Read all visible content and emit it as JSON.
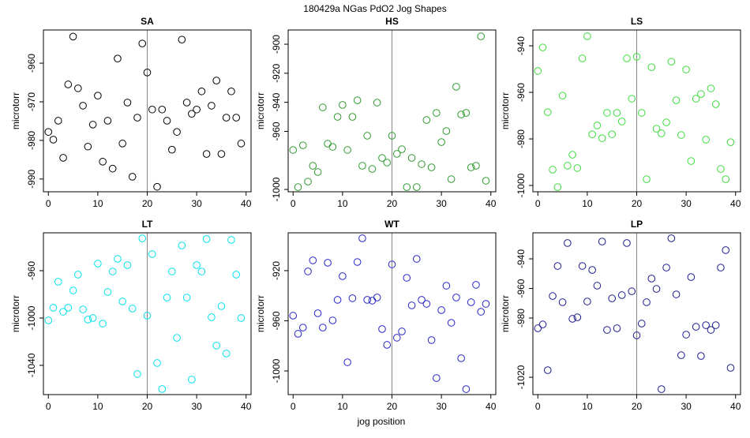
{
  "title": "180429a   NGas PdO2 Jog Shapes",
  "xlabel": "jog position",
  "chart_data": [
    {
      "type": "scatter",
      "title": "SA",
      "ylabel": "microtorr",
      "color": "#000000",
      "vline": 20,
      "x": [
        0,
        1,
        2,
        3,
        4,
        5,
        6,
        7,
        8,
        9,
        10,
        11,
        12,
        13,
        14,
        15,
        16,
        17,
        18,
        19,
        20,
        21,
        22,
        23,
        24,
        25,
        26,
        27,
        28,
        29,
        30,
        31,
        32,
        33,
        34,
        35,
        36,
        37,
        38,
        39
      ],
      "values": [
        -977.8,
        -979.8,
        -974.9,
        -984.5,
        -965.5,
        -953.1,
        -966.5,
        -971.0,
        -981.6,
        -975.9,
        -968.4,
        -985.5,
        -974.9,
        -987.3,
        -958.8,
        -980.8,
        -970.2,
        -989.4,
        -974.1,
        -954.9,
        -962.4,
        -972.0,
        -992.0,
        -972.0,
        -974.9,
        -982.4,
        -977.8,
        -953.9,
        -970.2,
        -973.1,
        -972.0,
        -967.3,
        -983.5,
        -971.0,
        -964.5,
        -983.5,
        -974.1,
        -967.3,
        -974.1,
        -980.8
      ],
      "xlim": [
        -1,
        41
      ],
      "ylim": [
        -993.3,
        -951.4
      ],
      "xticks": [
        0,
        10,
        20,
        30,
        40
      ],
      "yticks": [
        -990,
        -980,
        -970,
        -960
      ]
    },
    {
      "type": "scatter",
      "title": "HS",
      "ylabel": "microtorr",
      "color": "#2e9a2e",
      "vline": 20,
      "x": [
        0,
        1,
        2,
        3,
        4,
        5,
        6,
        7,
        8,
        9,
        10,
        11,
        12,
        13,
        14,
        15,
        16,
        17,
        18,
        19,
        20,
        21,
        22,
        23,
        24,
        25,
        26,
        27,
        28,
        29,
        30,
        31,
        32,
        33,
        34,
        35,
        36,
        37,
        38,
        39
      ],
      "values": [
        -972.8,
        -998.4,
        -969.6,
        -994.6,
        -983.7,
        -988.0,
        -943.5,
        -968.5,
        -970.7,
        -950.0,
        -941.8,
        -972.8,
        -950.0,
        -938.6,
        -983.7,
        -963.0,
        -985.9,
        -940.2,
        -978.3,
        -981.5,
        -963.0,
        -975.5,
        -972.3,
        -998.4,
        -978.3,
        -998.4,
        -982.6,
        -952.2,
        -984.8,
        -947.3,
        -967.4,
        -959.8,
        -992.9,
        -929.3,
        -948.4,
        -947.3,
        -984.8,
        -983.7,
        -894.6,
        -994.0
      ],
      "xlim": [
        -1,
        41
      ],
      "ylim": [
        -1001.6,
        -890.2
      ],
      "xticks": [
        0,
        10,
        20,
        30,
        40
      ],
      "yticks": [
        -1000,
        -960,
        -940,
        -920,
        -900
      ]
    },
    {
      "type": "scatter",
      "title": "LS",
      "ylabel": "microtorr",
      "color": "#3ddc3d",
      "vline": 20,
      "x": [
        0,
        1,
        2,
        3,
        4,
        5,
        6,
        7,
        8,
        9,
        10,
        11,
        12,
        13,
        14,
        15,
        16,
        17,
        18,
        19,
        20,
        21,
        22,
        23,
        24,
        25,
        26,
        27,
        28,
        29,
        30,
        31,
        32,
        33,
        34,
        35,
        36,
        37,
        38,
        39
      ],
      "values": [
        -950.8,
        -940.7,
        -968.5,
        -993.2,
        -1000.7,
        -961.4,
        -991.5,
        -986.8,
        -992.5,
        -945.4,
        -935.9,
        -978.0,
        -974.2,
        -979.7,
        -968.8,
        -978.0,
        -968.8,
        -972.5,
        -945.4,
        -962.7,
        -944.7,
        -968.8,
        -997.3,
        -949.2,
        -975.6,
        -977.6,
        -972.9,
        -946.8,
        -963.4,
        -978.3,
        -950.2,
        -989.5,
        -962.7,
        -960.7,
        -980.3,
        -958.3,
        -965.1,
        -992.9,
        -997.3,
        -981.4
      ],
      "xlim": [
        -1,
        41
      ],
      "ylim": [
        -1002.7,
        -933.2
      ],
      "xticks": [
        0,
        10,
        20,
        30,
        40
      ],
      "yticks": [
        -1000,
        -980,
        -960,
        -940
      ]
    },
    {
      "type": "scatter",
      "title": "LT",
      "ylabel": "microtorr",
      "color": "#00e0ec",
      "vline": 20,
      "x": [
        0,
        1,
        2,
        3,
        4,
        5,
        6,
        7,
        8,
        9,
        10,
        11,
        12,
        13,
        14,
        15,
        16,
        17,
        18,
        19,
        20,
        21,
        22,
        23,
        24,
        25,
        26,
        27,
        28,
        29,
        30,
        31,
        32,
        33,
        34,
        35,
        36,
        37,
        38,
        39
      ],
      "values": [
        -1002.0,
        -991.3,
        -969.3,
        -994.7,
        -991.3,
        -976.7,
        -963.3,
        -992.7,
        -1001.3,
        -1000.0,
        -954.0,
        -1004.7,
        -978.0,
        -960.7,
        -950.0,
        -986.0,
        -955.3,
        -992.0,
        -1047.3,
        -932.7,
        -998.0,
        -946.0,
        -1038.0,
        -1060.0,
        -982.7,
        -960.7,
        -1016.7,
        -938.7,
        -982.7,
        -1052.0,
        -955.3,
        -960.7,
        -933.3,
        -999.3,
        -1023.3,
        -990.0,
        -1030.0,
        -934.0,
        -963.3,
        -1000.0
      ],
      "xlim": [
        -1,
        41
      ],
      "ylim": [
        -1064.7,
        -928.0
      ],
      "xticks": [
        0,
        10,
        20,
        30,
        40
      ],
      "yticks": [
        -1040,
        -1000,
        -960
      ]
    },
    {
      "type": "scatter",
      "title": "WT",
      "ylabel": "microtorr",
      "color": "#2424c8",
      "vline": 20,
      "x": [
        0,
        1,
        2,
        3,
        4,
        5,
        6,
        7,
        8,
        9,
        10,
        11,
        12,
        13,
        14,
        15,
        16,
        17,
        18,
        19,
        20,
        21,
        22,
        23,
        24,
        25,
        26,
        27,
        28,
        29,
        30,
        31,
        32,
        33,
        34,
        35,
        36,
        37,
        38,
        39
      ],
      "values": [
        -955.9,
        -970.4,
        -965.4,
        -920.6,
        -911.8,
        -954.0,
        -965.4,
        -913.7,
        -959.7,
        -943.3,
        -924.4,
        -993.1,
        -942.0,
        -913.1,
        -894.2,
        -943.3,
        -943.9,
        -941.4,
        -966.6,
        -979.2,
        -915.0,
        -973.5,
        -968.5,
        -925.7,
        -947.7,
        -910.6,
        -943.3,
        -946.5,
        -975.4,
        -1005.7,
        -951.5,
        -932.0,
        -961.6,
        -941.4,
        -989.9,
        -1014.5,
        -945.2,
        -931.3,
        -952.8,
        -946.5
      ],
      "xlim": [
        -1,
        41
      ],
      "ylim": [
        -1018.9,
        -889.8
      ],
      "xticks": [
        0,
        10,
        20,
        30,
        40
      ],
      "yticks": [
        -1000,
        -960,
        -920
      ]
    },
    {
      "type": "scatter",
      "title": "LP",
      "ylabel": "microtorr",
      "color": "#1c1c8e",
      "vline": 20,
      "x": [
        0,
        1,
        2,
        3,
        4,
        5,
        6,
        7,
        8,
        9,
        10,
        11,
        12,
        13,
        14,
        15,
        16,
        17,
        18,
        19,
        20,
        21,
        22,
        23,
        24,
        25,
        26,
        27,
        28,
        29,
        30,
        31,
        32,
        33,
        34,
        35,
        36,
        37,
        38,
        39
      ],
      "values": [
        -986.9,
        -984.3,
        -1015.2,
        -965.1,
        -944.8,
        -969.3,
        -929.3,
        -980.5,
        -979.5,
        -944.8,
        -968.8,
        -947.5,
        -958.1,
        -928.3,
        -988.0,
        -966.7,
        -986.9,
        -964.5,
        -929.3,
        -961.9,
        -991.7,
        -983.7,
        -969.3,
        -953.3,
        -960.3,
        -1028.0,
        -945.9,
        -926.1,
        -964.0,
        -1005.1,
        -991.2,
        -952.3,
        -985.9,
        -1005.6,
        -984.8,
        -988.0,
        -984.8,
        -945.9,
        -934.1,
        -1013.6
      ],
      "xlim": [
        -1,
        41
      ],
      "ylim": [
        -1031.7,
        -922.4
      ],
      "xticks": [
        0,
        10,
        20,
        30,
        40
      ],
      "yticks": [
        -1020,
        -980,
        -960,
        -940
      ]
    }
  ]
}
